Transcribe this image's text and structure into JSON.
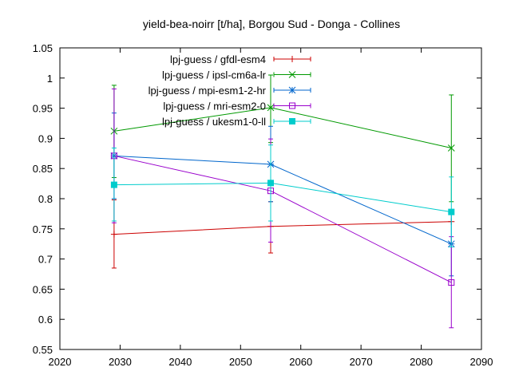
{
  "chart_data": {
    "type": "line",
    "title": "yield-bea-noirr [t/ha], Borgou Sud - Donga - Collines",
    "xlabel": "",
    "ylabel": "",
    "xlim": [
      2020,
      2090
    ],
    "ylim": [
      0.55,
      1.05
    ],
    "x_ticks": [
      2020,
      2030,
      2040,
      2050,
      2060,
      2070,
      2080,
      2090
    ],
    "y_ticks": [
      0.55,
      0.6,
      0.65,
      0.7,
      0.75,
      0.8,
      0.85,
      0.9,
      0.95,
      1,
      1.05
    ],
    "grid": false,
    "legend_position": "top-right",
    "series": [
      {
        "name": "lpj-guess / gfdl-esm4",
        "color": "#cc0000",
        "marker": "plus",
        "x": [
          2029,
          2055,
          2085
        ],
        "y": [
          0.741,
          0.754,
          0.762
        ],
        "err_low": [
          0.685,
          0.71,
          0.762
        ],
        "err_high": [
          0.798,
          0.795,
          0.762
        ]
      },
      {
        "name": "lpj-guess / ipsl-cm6a-lr",
        "color": "#009900",
        "marker": "cross",
        "x": [
          2029,
          2055,
          2085
        ],
        "y": [
          0.912,
          0.951,
          0.884
        ],
        "err_low": [
          0.835,
          0.893,
          0.795
        ],
        "err_high": [
          0.988,
          1.005,
          0.972
        ]
      },
      {
        "name": "lpj-guess / mpi-esm1-2-hr",
        "color": "#0066cc",
        "marker": "star",
        "x": [
          2029,
          2055,
          2085
        ],
        "y": [
          0.871,
          0.857,
          0.725
        ],
        "err_low": [
          0.8,
          0.795,
          0.672
        ],
        "err_high": [
          0.942,
          0.92,
          0.78
        ]
      },
      {
        "name": "lpj-guess / mri-esm2-0",
        "color": "#9900cc",
        "marker": "square-open",
        "x": [
          2029,
          2055,
          2085
        ],
        "y": [
          0.871,
          0.813,
          0.661
        ],
        "err_low": [
          0.76,
          0.728,
          0.586
        ],
        "err_high": [
          0.982,
          0.899,
          0.737
        ]
      },
      {
        "name": "lpj-guess / ukesm1-0-ll",
        "color": "#00cccc",
        "marker": "square-filled",
        "x": [
          2029,
          2055,
          2085
        ],
        "y": [
          0.823,
          0.826,
          0.778
        ],
        "err_low": [
          0.763,
          0.763,
          0.72
        ],
        "err_high": [
          0.884,
          0.889,
          0.836
        ]
      }
    ]
  }
}
